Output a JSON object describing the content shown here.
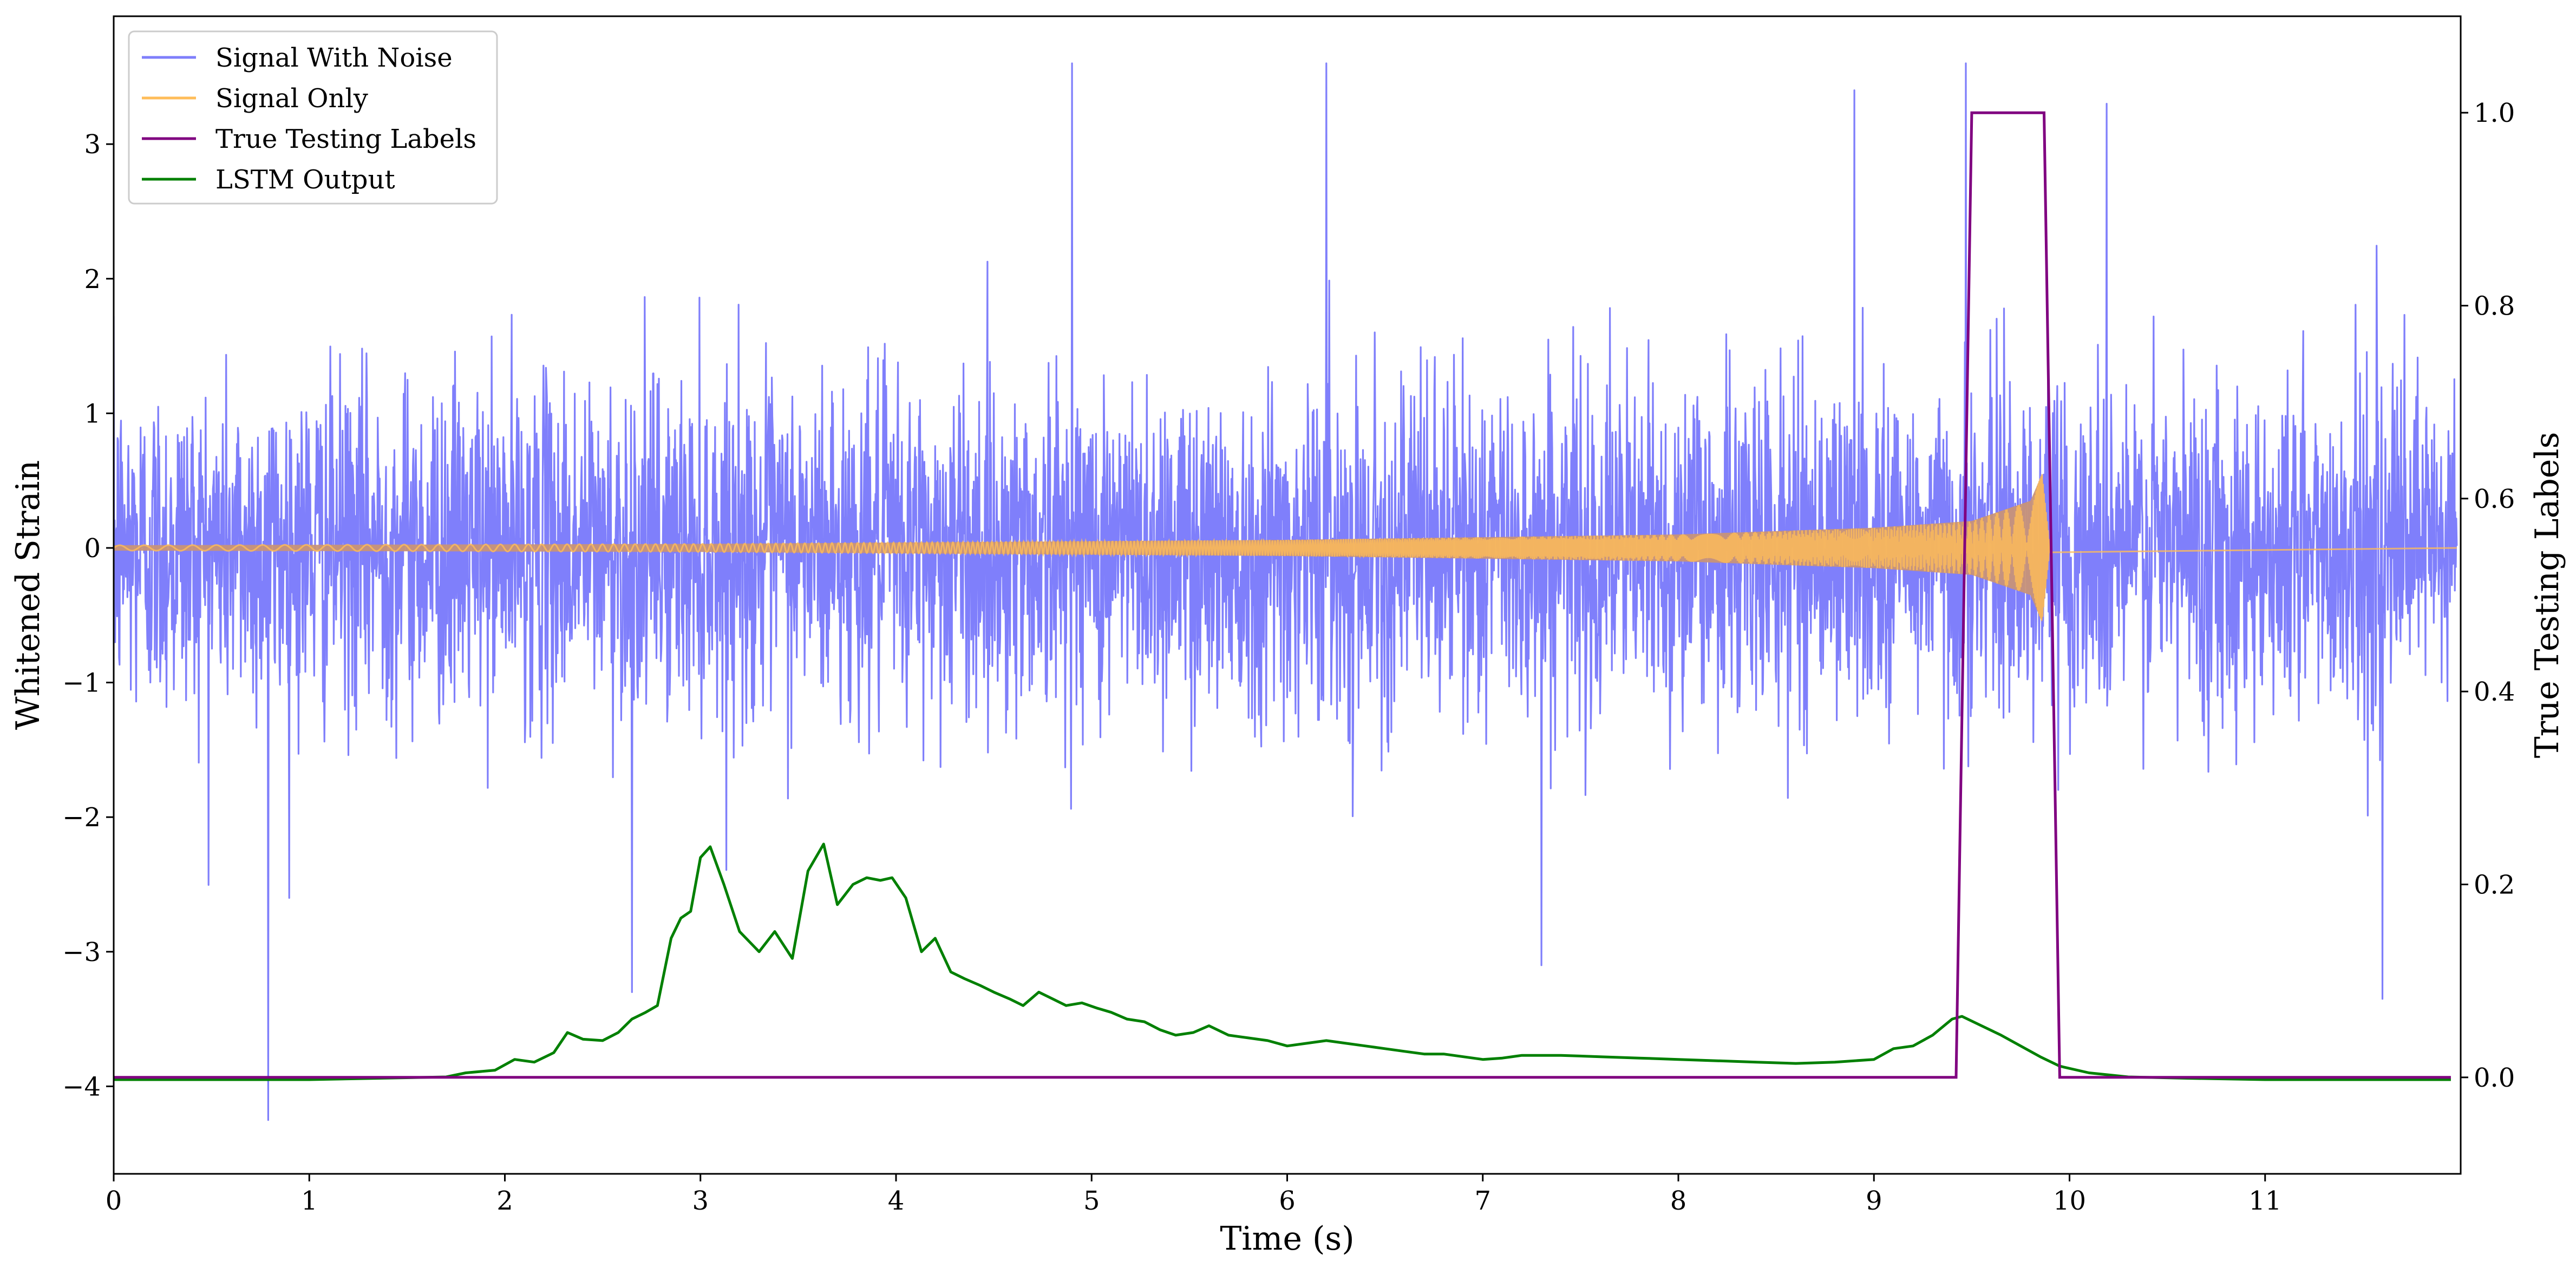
{
  "chart_data": {
    "type": "line",
    "xlabel": "Time (s)",
    "ylabel": "Whitened Strain",
    "y2label": "True Testing Labels",
    "xlim": [
      0,
      12
    ],
    "ylim": [
      -4.65,
      3.95
    ],
    "y2lim": [
      -0.1,
      1.1
    ],
    "xticks": [
      0,
      1,
      2,
      3,
      4,
      5,
      6,
      7,
      8,
      9,
      10,
      11
    ],
    "yticks": [
      -4,
      -3,
      -2,
      -1,
      0,
      1,
      2,
      3
    ],
    "y2ticks": [
      0.0,
      0.2,
      0.4,
      0.6,
      0.8,
      1.0
    ],
    "legend_position": "upper-left",
    "legend": [
      "Signal With Noise",
      "Signal Only",
      "True Testing Labels",
      "LSTM Output"
    ],
    "colors": {
      "noise": "#7f7ffb",
      "signal": "#ffbd59",
      "signal_fill": "#c89478",
      "labels": "#800080",
      "lstm": "#008000",
      "axes": "#000000"
    },
    "series": [
      {
        "name": "Signal With Noise",
        "axis": "left",
        "description_values": {
          "samples_per_second": 400,
          "std": 0.62,
          "peaks": [
            [
              0.79,
              -4.25
            ],
            [
              2.65,
              -3.3
            ],
            [
              4.9,
              3.6
            ],
            [
              6.2,
              3.6
            ],
            [
              7.3,
              -3.1
            ],
            [
              8.9,
              3.4
            ],
            [
              9.47,
              3.6
            ],
            [
              10.19,
              3.3
            ],
            [
              11.6,
              -3.35
            ]
          ]
        }
      },
      {
        "name": "Signal Only",
        "axis": "left",
        "envelope": [
          [
            0,
            0.02
          ],
          [
            3,
            0.03
          ],
          [
            6,
            0.06
          ],
          [
            8,
            0.1
          ],
          [
            9,
            0.15
          ],
          [
            9.5,
            0.2
          ],
          [
            9.8,
            0.35
          ],
          [
            9.86,
            0.55
          ],
          [
            9.9,
            0.0
          ],
          [
            12,
            0.0
          ]
        ]
      },
      {
        "name": "True Testing Labels",
        "axis": "right",
        "x": [
          0,
          9.42,
          9.5,
          9.87,
          9.95,
          11.95
        ],
        "y": [
          0,
          0,
          1,
          1,
          0,
          0
        ]
      },
      {
        "name": "LSTM Output",
        "axis": "left",
        "x": [
          0,
          1.0,
          1.7,
          1.8,
          1.95,
          2.05,
          2.15,
          2.25,
          2.32,
          2.4,
          2.5,
          2.58,
          2.65,
          2.72,
          2.78,
          2.85,
          2.9,
          2.95,
          3.0,
          3.05,
          3.12,
          3.2,
          3.3,
          3.38,
          3.47,
          3.55,
          3.63,
          3.7,
          3.78,
          3.85,
          3.92,
          3.98,
          4.05,
          4.13,
          4.2,
          4.28,
          4.35,
          4.43,
          4.5,
          4.58,
          4.65,
          4.73,
          4.8,
          4.87,
          4.95,
          5.03,
          5.1,
          5.18,
          5.27,
          5.35,
          5.43,
          5.52,
          5.6,
          5.7,
          5.8,
          5.9,
          6.0,
          6.1,
          6.2,
          6.3,
          6.4,
          6.5,
          6.6,
          6.7,
          6.8,
          6.9,
          7.0,
          7.1,
          7.2,
          7.4,
          7.6,
          7.8,
          8.0,
          8.2,
          8.4,
          8.6,
          8.8,
          9.0,
          9.1,
          9.2,
          9.3,
          9.4,
          9.45,
          9.55,
          9.65,
          9.75,
          9.85,
          9.95,
          10.1,
          10.3,
          10.6,
          11.0,
          11.5,
          11.95
        ],
        "y": [
          -3.95,
          -3.95,
          -3.93,
          -3.9,
          -3.88,
          -3.8,
          -3.82,
          -3.75,
          -3.6,
          -3.65,
          -3.66,
          -3.6,
          -3.5,
          -3.45,
          -3.4,
          -2.9,
          -2.75,
          -2.7,
          -2.3,
          -2.22,
          -2.5,
          -2.85,
          -3.0,
          -2.85,
          -3.05,
          -2.4,
          -2.2,
          -2.65,
          -2.5,
          -2.45,
          -2.47,
          -2.45,
          -2.6,
          -3.0,
          -2.9,
          -3.15,
          -3.2,
          -3.25,
          -3.3,
          -3.35,
          -3.4,
          -3.3,
          -3.35,
          -3.4,
          -3.38,
          -3.42,
          -3.45,
          -3.5,
          -3.52,
          -3.58,
          -3.62,
          -3.6,
          -3.55,
          -3.62,
          -3.64,
          -3.66,
          -3.7,
          -3.68,
          -3.66,
          -3.68,
          -3.7,
          -3.72,
          -3.74,
          -3.76,
          -3.76,
          -3.78,
          -3.8,
          -3.79,
          -3.77,
          -3.77,
          -3.78,
          -3.79,
          -3.8,
          -3.81,
          -3.82,
          -3.83,
          -3.82,
          -3.8,
          -3.72,
          -3.7,
          -3.62,
          -3.5,
          -3.48,
          -3.55,
          -3.62,
          -3.7,
          -3.78,
          -3.85,
          -3.9,
          -3.93,
          -3.94,
          -3.95,
          -3.95,
          -3.95
        ]
      }
    ]
  }
}
